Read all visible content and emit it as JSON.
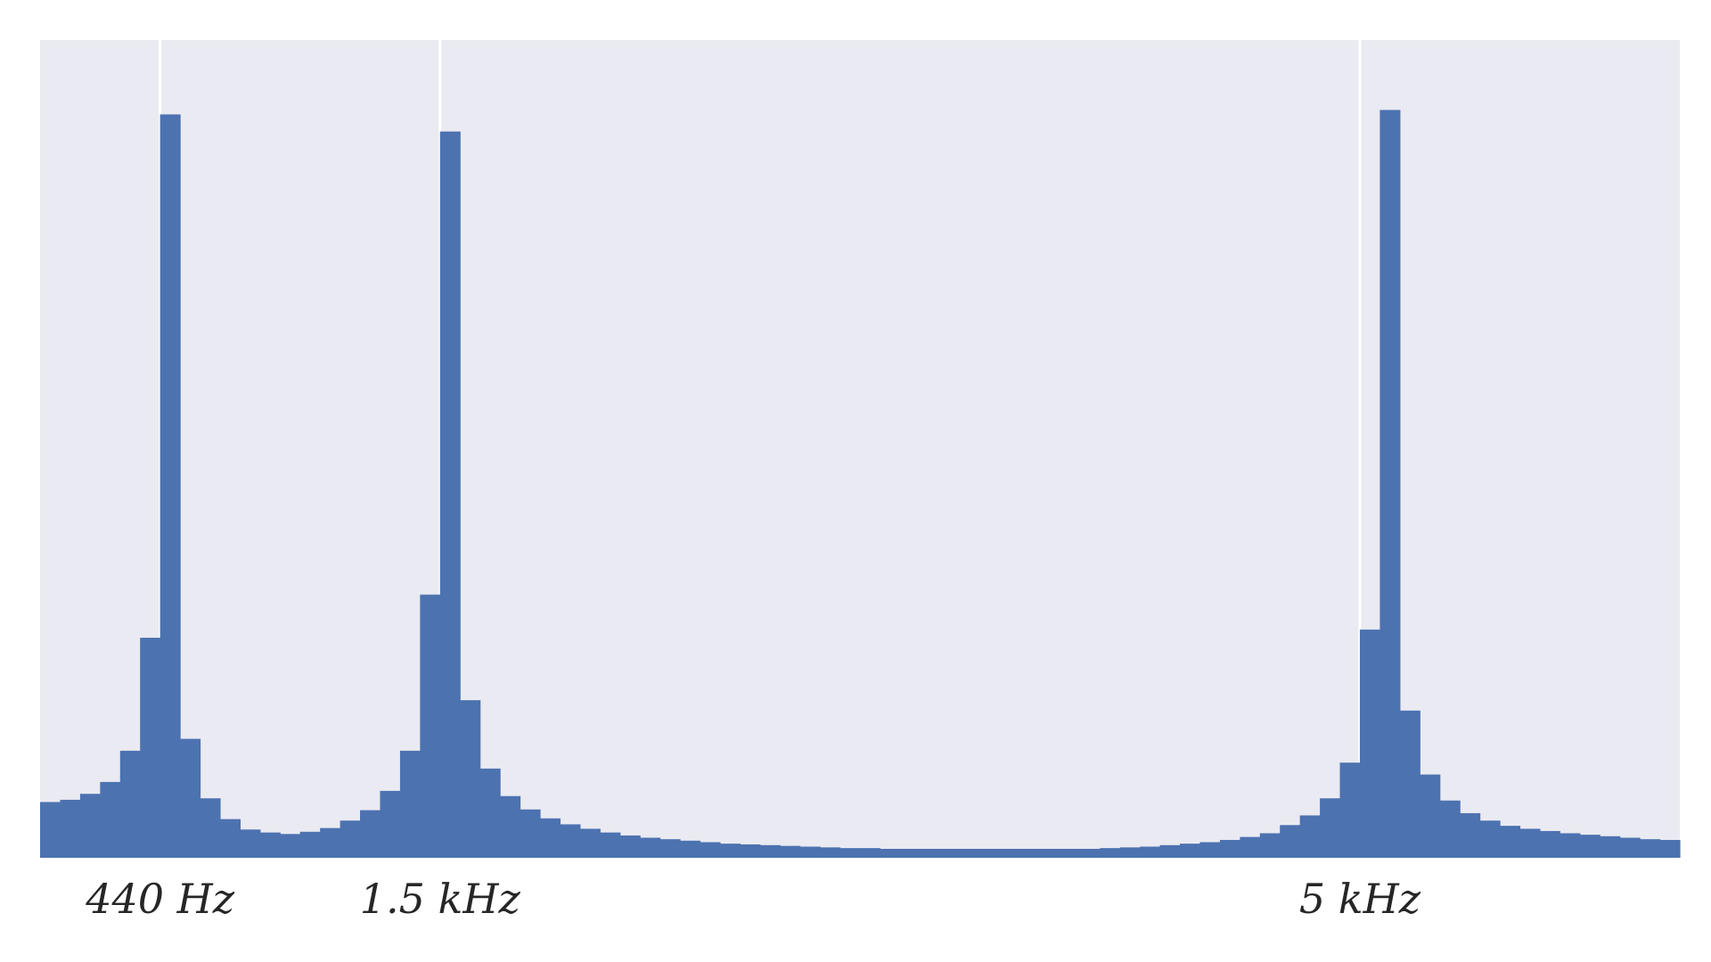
{
  "chart_data": {
    "type": "bar",
    "title": "",
    "xlabel": "",
    "ylabel": "",
    "grid": true,
    "yticks_shown": false,
    "colors": {
      "bar": "#4c72b0",
      "background": "#eaeaf2",
      "grid": "#ffffff",
      "text": "#262626"
    },
    "xticks": [
      {
        "label": "440 Hz",
        "bin_index": 5.5
      },
      {
        "label": "1.5 kHz",
        "bin_index": 19.5
      },
      {
        "label": "5 kHz",
        "bin_index": 65.5
      }
    ],
    "ylim": [
      0,
      1.1
    ],
    "values": [
      0.075,
      0.078,
      0.086,
      0.102,
      0.144,
      0.296,
      1.0,
      0.16,
      0.08,
      0.052,
      0.038,
      0.034,
      0.032,
      0.035,
      0.04,
      0.05,
      0.064,
      0.09,
      0.144,
      0.354,
      0.977,
      0.212,
      0.12,
      0.083,
      0.065,
      0.053,
      0.045,
      0.039,
      0.034,
      0.03,
      0.027,
      0.025,
      0.023,
      0.021,
      0.019,
      0.018,
      0.017,
      0.016,
      0.015,
      0.014,
      0.013,
      0.013,
      0.012,
      0.012,
      0.012,
      0.012,
      0.012,
      0.012,
      0.012,
      0.012,
      0.012,
      0.012,
      0.012,
      0.013,
      0.014,
      0.015,
      0.017,
      0.019,
      0.021,
      0.024,
      0.028,
      0.033,
      0.044,
      0.057,
      0.08,
      0.128,
      0.307,
      1.006,
      0.198,
      0.112,
      0.077,
      0.06,
      0.05,
      0.043,
      0.039,
      0.036,
      0.033,
      0.031,
      0.029,
      0.027,
      0.025,
      0.024
    ]
  }
}
